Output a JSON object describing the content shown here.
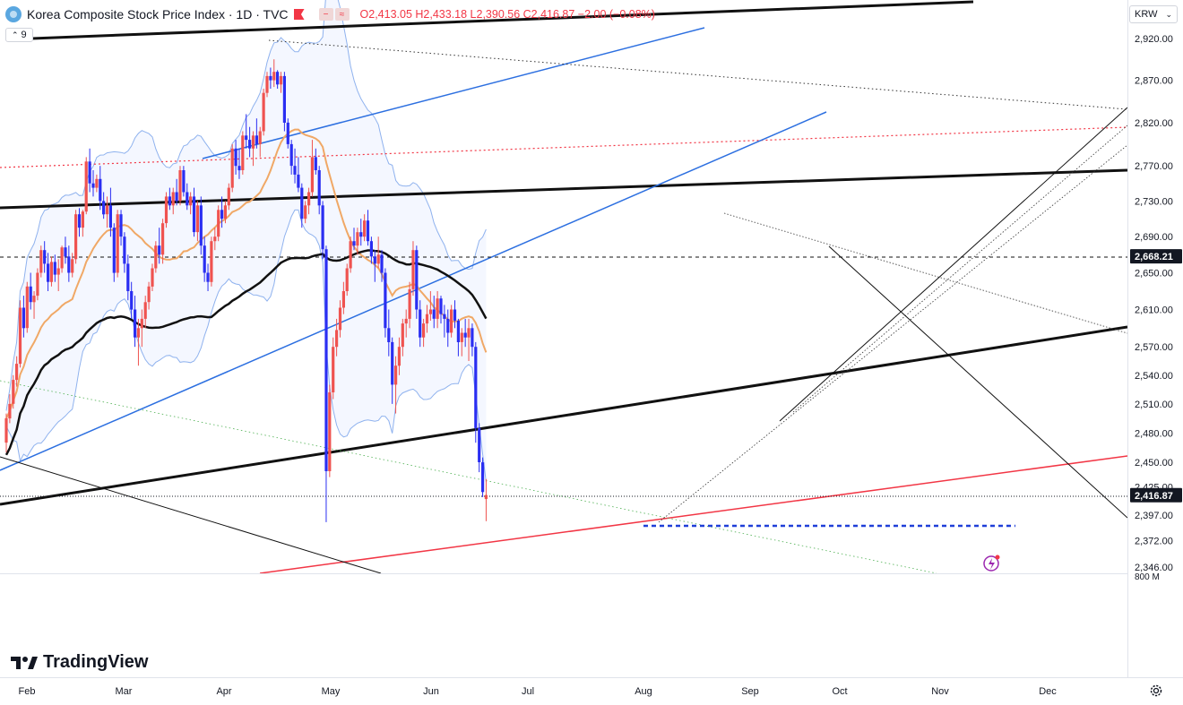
{
  "header": {
    "title": "Korea Composite Stock Price Index · 1D · TVC",
    "ohlc": "O2,413.05 H2,433.18 L2,390.56 C2,416.87 −2.00 (−0.08%)",
    "indicator_count": "9"
  },
  "currency": "KRW",
  "branding": "TradingView",
  "colors": {
    "up": "#ef5350",
    "down": "#2a2ef2",
    "bollinger": "#8fb2ee",
    "ma_short": "#f0a866",
    "ma_long": "#111111",
    "trend_blue": "#2c6fe0",
    "trend_red": "#f23645"
  },
  "chart_data": {
    "type": "candlestick",
    "y_scale": "log",
    "ylim": [
      2346,
      2970
    ],
    "y_ticks": [
      "2,920.00",
      "2,870.00",
      "2,820.00",
      "2,770.00",
      "2,730.00",
      "2,690.00",
      "2,650.00",
      "2,610.00",
      "2,570.00",
      "2,540.00",
      "2,510.00",
      "2,480.00",
      "2,450.00",
      "2,425.00",
      "2,397.00",
      "2,372.00",
      "2,346.00"
    ],
    "x_labels": [
      "Feb",
      "Mar",
      "Apr",
      "May",
      "Jun",
      "Jul",
      "Aug",
      "Sep",
      "Oct",
      "Nov",
      "Dec"
    ],
    "volume_axis_label": "800 M",
    "price_labels": [
      {
        "value": 2668.21,
        "label": "2,668.21",
        "style": "dashed"
      },
      {
        "value": 2416.87,
        "label": "2,416.87",
        "style": "dotted"
      }
    ],
    "support_level": 2386,
    "candles": [
      [
        2470,
        2500,
        2460,
        2495
      ],
      [
        2495,
        2520,
        2490,
        2510
      ],
      [
        2510,
        2540,
        2505,
        2535
      ],
      [
        2535,
        2560,
        2528,
        2552
      ],
      [
        2552,
        2620,
        2548,
        2612
      ],
      [
        2612,
        2625,
        2580,
        2590
      ],
      [
        2590,
        2640,
        2585,
        2635
      ],
      [
        2635,
        2650,
        2610,
        2618
      ],
      [
        2618,
        2630,
        2600,
        2625
      ],
      [
        2625,
        2655,
        2620,
        2650
      ],
      [
        2650,
        2680,
        2645,
        2675
      ],
      [
        2675,
        2685,
        2650,
        2660
      ],
      [
        2660,
        2672,
        2630,
        2640
      ],
      [
        2640,
        2668,
        2635,
        2662
      ],
      [
        2662,
        2670,
        2640,
        2648
      ],
      [
        2648,
        2665,
        2630,
        2655
      ],
      [
        2655,
        2680,
        2650,
        2678
      ],
      [
        2678,
        2690,
        2660,
        2668
      ],
      [
        2668,
        2680,
        2640,
        2650
      ],
      [
        2650,
        2672,
        2645,
        2665
      ],
      [
        2665,
        2720,
        2660,
        2715
      ],
      [
        2715,
        2722,
        2690,
        2700
      ],
      [
        2700,
        2720,
        2690,
        2718
      ],
      [
        2718,
        2780,
        2715,
        2775
      ],
      [
        2775,
        2790,
        2740,
        2750
      ],
      [
        2750,
        2765,
        2735,
        2745
      ],
      [
        2745,
        2760,
        2740,
        2755
      ],
      [
        2755,
        2770,
        2720,
        2730
      ],
      [
        2730,
        2740,
        2710,
        2715
      ],
      [
        2715,
        2735,
        2700,
        2725
      ],
      [
        2725,
        2745,
        2690,
        2700
      ],
      [
        2700,
        2705,
        2640,
        2650
      ],
      [
        2650,
        2720,
        2645,
        2715
      ],
      [
        2715,
        2720,
        2680,
        2690
      ],
      [
        2690,
        2695,
        2650,
        2660
      ],
      [
        2660,
        2670,
        2620,
        2630
      ],
      [
        2630,
        2640,
        2600,
        2610
      ],
      [
        2610,
        2625,
        2570,
        2580
      ],
      [
        2580,
        2600,
        2550,
        2590
      ],
      [
        2590,
        2610,
        2570,
        2600
      ],
      [
        2600,
        2625,
        2590,
        2618
      ],
      [
        2618,
        2640,
        2610,
        2635
      ],
      [
        2635,
        2660,
        2630,
        2655
      ],
      [
        2655,
        2685,
        2650,
        2680
      ],
      [
        2680,
        2700,
        2660,
        2670
      ],
      [
        2670,
        2710,
        2660,
        2705
      ],
      [
        2705,
        2740,
        2700,
        2735
      ],
      [
        2735,
        2745,
        2720,
        2725
      ],
      [
        2725,
        2745,
        2715,
        2740
      ],
      [
        2740,
        2755,
        2725,
        2730
      ],
      [
        2730,
        2770,
        2725,
        2765
      ],
      [
        2765,
        2770,
        2735,
        2740
      ],
      [
        2740,
        2750,
        2720,
        2725
      ],
      [
        2725,
        2740,
        2715,
        2735
      ],
      [
        2735,
        2745,
        2690,
        2695
      ],
      [
        2695,
        2730,
        2685,
        2725
      ],
      [
        2725,
        2735,
        2670,
        2680
      ],
      [
        2680,
        2690,
        2640,
        2650
      ],
      [
        2650,
        2660,
        2630,
        2640
      ],
      [
        2640,
        2690,
        2635,
        2685
      ],
      [
        2685,
        2700,
        2675,
        2690
      ],
      [
        2690,
        2725,
        2685,
        2720
      ],
      [
        2720,
        2735,
        2700,
        2710
      ],
      [
        2710,
        2730,
        2705,
        2725
      ],
      [
        2725,
        2750,
        2720,
        2745
      ],
      [
        2745,
        2795,
        2740,
        2790
      ],
      [
        2790,
        2800,
        2760,
        2770
      ],
      [
        2770,
        2790,
        2755,
        2765
      ],
      [
        2765,
        2810,
        2760,
        2805
      ],
      [
        2805,
        2830,
        2790,
        2800
      ],
      [
        2800,
        2815,
        2780,
        2790
      ],
      [
        2790,
        2810,
        2770,
        2805
      ],
      [
        2805,
        2825,
        2790,
        2795
      ],
      [
        2795,
        2815,
        2780,
        2810
      ],
      [
        2810,
        2860,
        2805,
        2855
      ],
      [
        2855,
        2880,
        2850,
        2875
      ],
      [
        2875,
        2885,
        2860,
        2870
      ],
      [
        2870,
        2895,
        2862,
        2880
      ],
      [
        2880,
        2882,
        2860,
        2865
      ],
      [
        2865,
        2880,
        2855,
        2875
      ],
      [
        2875,
        2880,
        2810,
        2820
      ],
      [
        2820,
        2825,
        2790,
        2795
      ],
      [
        2795,
        2800,
        2760,
        2770
      ],
      [
        2770,
        2790,
        2750,
        2760
      ],
      [
        2760,
        2780,
        2740,
        2745
      ],
      [
        2745,
        2750,
        2700,
        2710
      ],
      [
        2710,
        2730,
        2705,
        2725
      ],
      [
        2725,
        2745,
        2715,
        2740
      ],
      [
        2740,
        2800,
        2735,
        2780
      ],
      [
        2780,
        2790,
        2760,
        2765
      ],
      [
        2765,
        2770,
        2715,
        2725
      ],
      [
        2725,
        2730,
        2665,
        2676
      ],
      [
        2676,
        2680,
        2390,
        2441
      ],
      [
        2441,
        2530,
        2435,
        2522
      ],
      [
        2522,
        2580,
        2515,
        2570
      ],
      [
        2570,
        2600,
        2560,
        2588
      ],
      [
        2588,
        2620,
        2580,
        2612
      ],
      [
        2612,
        2640,
        2605,
        2630
      ],
      [
        2630,
        2660,
        2625,
        2655
      ],
      [
        2655,
        2690,
        2650,
        2685
      ],
      [
        2685,
        2700,
        2675,
        2680
      ],
      [
        2680,
        2700,
        2670,
        2695
      ],
      [
        2695,
        2710,
        2680,
        2690
      ],
      [
        2690,
        2715,
        2685,
        2708
      ],
      [
        2708,
        2720,
        2680,
        2685
      ],
      [
        2685,
        2690,
        2660,
        2668
      ],
      [
        2668,
        2675,
        2640,
        2660
      ],
      [
        2660,
        2690,
        2655,
        2670
      ],
      [
        2670,
        2675,
        2640,
        2650
      ],
      [
        2650,
        2655,
        2580,
        2590
      ],
      [
        2590,
        2610,
        2560,
        2575
      ],
      [
        2575,
        2580,
        2510,
        2530
      ],
      [
        2530,
        2560,
        2500,
        2550
      ],
      [
        2550,
        2580,
        2540,
        2570
      ],
      [
        2570,
        2600,
        2560,
        2595
      ],
      [
        2595,
        2610,
        2580,
        2600
      ],
      [
        2600,
        2640,
        2590,
        2632
      ],
      [
        2632,
        2685,
        2625,
        2675
      ],
      [
        2675,
        2680,
        2600,
        2610
      ],
      [
        2610,
        2620,
        2570,
        2580
      ],
      [
        2580,
        2600,
        2570,
        2595
      ],
      [
        2595,
        2615,
        2585,
        2605
      ],
      [
        2605,
        2630,
        2598,
        2610
      ],
      [
        2610,
        2625,
        2590,
        2600
      ],
      [
        2600,
        2630,
        2590,
        2622
      ],
      [
        2622,
        2625,
        2595,
        2605
      ],
      [
        2605,
        2615,
        2580,
        2600
      ],
      [
        2600,
        2610,
        2570,
        2585
      ],
      [
        2585,
        2615,
        2580,
        2610
      ],
      [
        2610,
        2620,
        2590,
        2598
      ],
      [
        2598,
        2600,
        2560,
        2575
      ],
      [
        2575,
        2590,
        2560,
        2585
      ],
      [
        2585,
        2600,
        2570,
        2580
      ],
      [
        2580,
        2600,
        2555,
        2590
      ],
      [
        2590,
        2595,
        2560,
        2570
      ],
      [
        2570,
        2575,
        2470,
        2485
      ],
      [
        2485,
        2490,
        2440,
        2450
      ],
      [
        2450,
        2455,
        2415,
        2420
      ],
      [
        2413,
        2433,
        2391,
        2417
      ]
    ],
    "overlays": [
      {
        "type": "line",
        "name": "",
        "label": "MA short"
      },
      {
        "type": "line",
        "name": "",
        "label": "MA long"
      },
      {
        "type": "band",
        "name": "",
        "label": "Bollinger"
      }
    ]
  }
}
